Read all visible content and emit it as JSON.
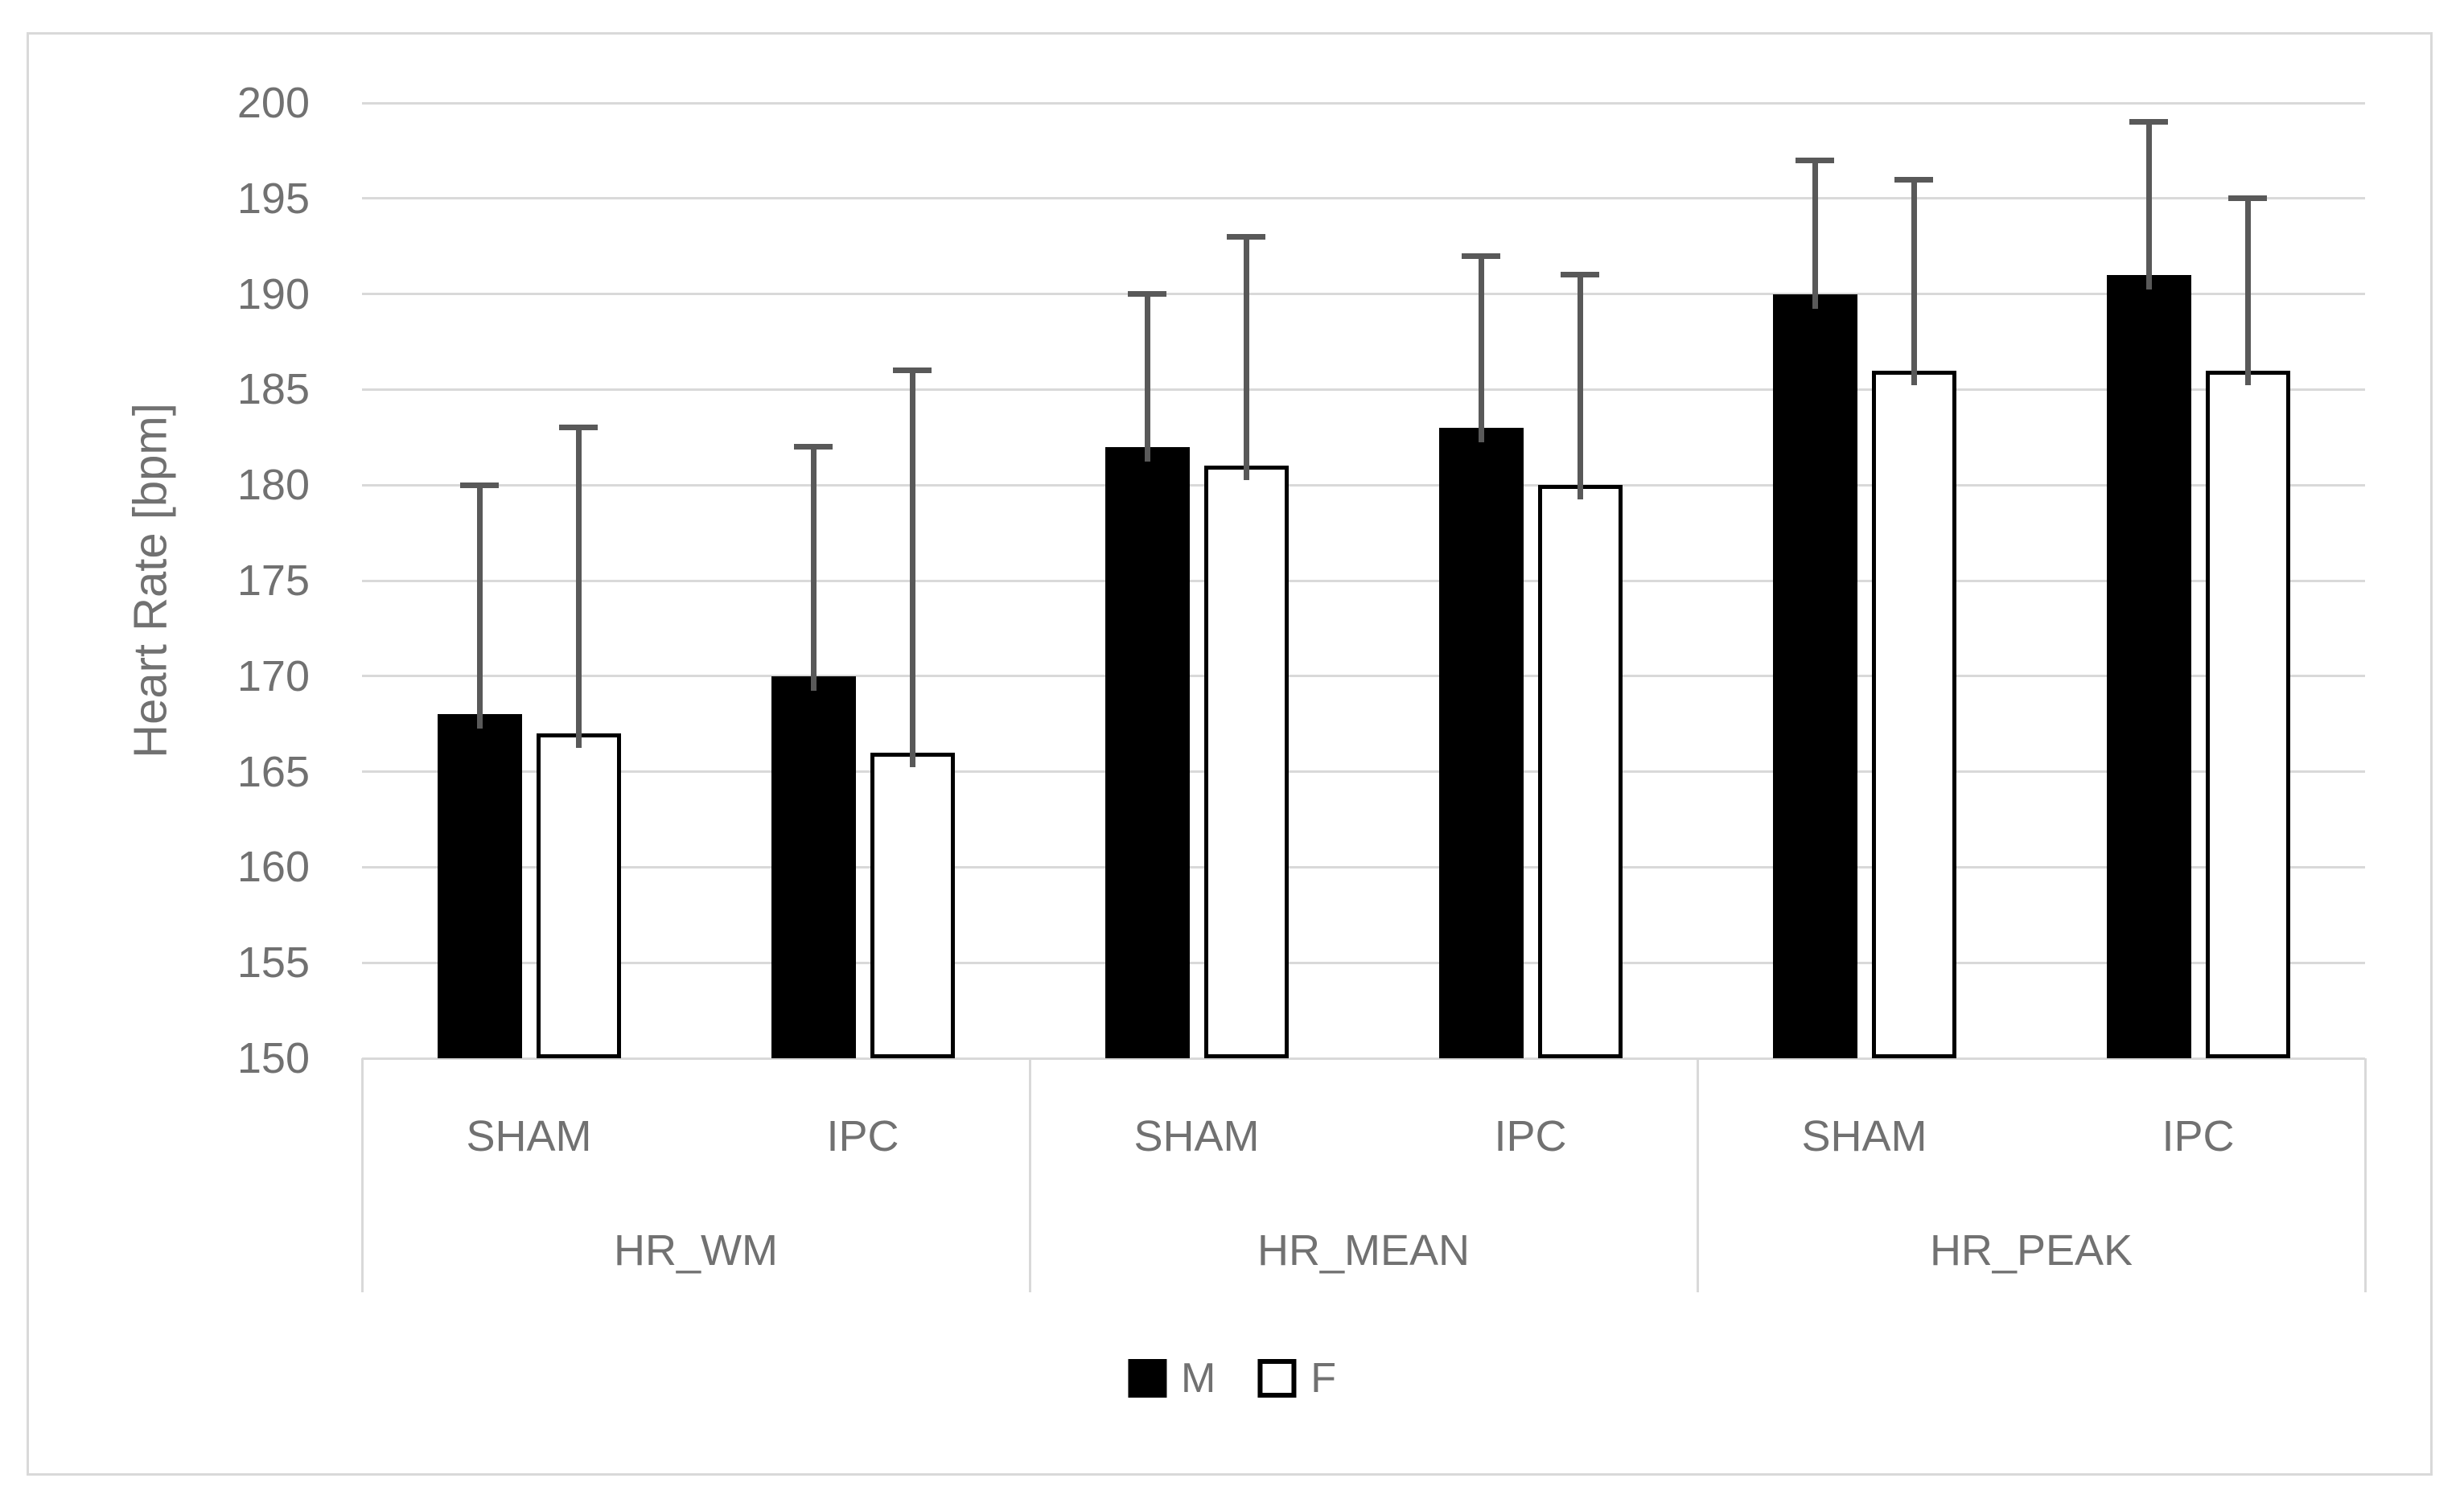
{
  "chart_data": {
    "type": "bar",
    "title": "",
    "xlabel": "",
    "ylabel": "Heart Rate [bpm]",
    "ylim": [
      150,
      200
    ],
    "yticks": [
      150,
      155,
      160,
      165,
      170,
      175,
      180,
      185,
      190,
      195,
      200
    ],
    "grid": true,
    "legend_position": "bottom",
    "groups": [
      {
        "label": "HR_WM",
        "conditions": [
          "SHAM",
          "IPC"
        ]
      },
      {
        "label": "HR_MEAN",
        "conditions": [
          "SHAM",
          "IPC"
        ]
      },
      {
        "label": "HR_PEAK",
        "conditions": [
          "SHAM",
          "IPC"
        ]
      }
    ],
    "categories": [
      "HR_WM SHAM",
      "HR_WM IPC",
      "HR_MEAN SHAM",
      "HR_MEAN IPC",
      "HR_PEAK SHAM",
      "HR_PEAK IPC"
    ],
    "series": [
      {
        "name": "M",
        "fill": "#000000",
        "values": [
          168,
          170,
          182,
          183,
          190,
          191
        ],
        "error_top": [
          180,
          182,
          190,
          192,
          197,
          199
        ]
      },
      {
        "name": "F",
        "fill": "#ffffff",
        "values": [
          167,
          166,
          181,
          180,
          186,
          186
        ],
        "error_top": [
          183,
          186,
          193,
          191,
          196,
          195
        ]
      }
    ],
    "colors": {
      "gridline": "#d9d9d9",
      "chart_border": "#d9d9d9",
      "axis_text": "#717171",
      "error_bar": "#595959",
      "bar_m": "#000000",
      "bar_f_fill": "#ffffff",
      "bar_f_border": "#000000"
    }
  }
}
